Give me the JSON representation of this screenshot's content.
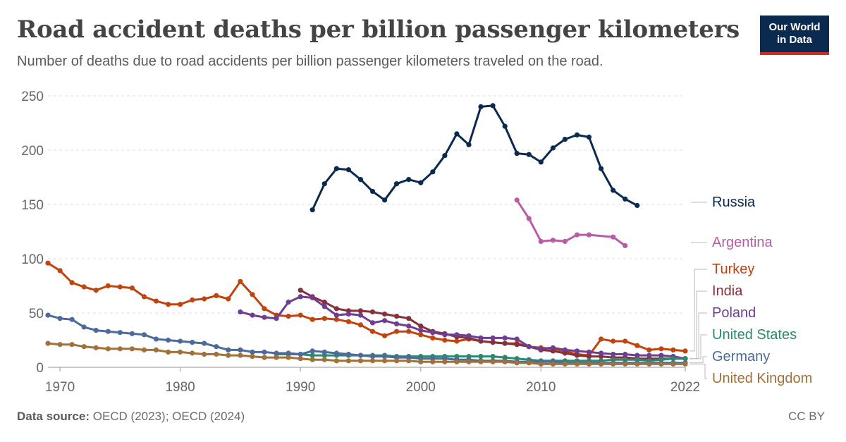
{
  "header": {
    "title": "Road accident deaths per billion passenger kilometers",
    "subtitle": "Number of deaths due to road accidents per billion passenger kilometers traveled on the road.",
    "logo_line1": "Our World",
    "logo_line2": "in Data"
  },
  "footer": {
    "source_label": "Data source:",
    "source_text": "OECD (2023); OECD (2024)",
    "license": "CC BY"
  },
  "chart_data": {
    "type": "line",
    "xlim": [
      1969,
      2022
    ],
    "ylim": [
      0,
      250
    ],
    "yticks": [
      0,
      50,
      100,
      150,
      200,
      250
    ],
    "xticks": [
      1970,
      1980,
      1990,
      2000,
      2010,
      2022
    ],
    "grid": true,
    "legend": "right-end-labels",
    "series": [
      {
        "name": "Russia",
        "color": "#0b2a4f",
        "x": [
          1991,
          1992,
          1993,
          1994,
          1995,
          1996,
          1997,
          1998,
          1999,
          2000,
          2001,
          2002,
          2003,
          2004,
          2005,
          2006,
          2007,
          2008,
          2009,
          2010,
          2011,
          2012,
          2013,
          2014,
          2015,
          2016,
          2017,
          2018
        ],
        "y": [
          145,
          169,
          183,
          182,
          173,
          162,
          154,
          169,
          173,
          170,
          180,
          195,
          215,
          205,
          240,
          241,
          222,
          197,
          196,
          189,
          202,
          210,
          214,
          212,
          183,
          163,
          155,
          149
        ]
      },
      {
        "name": "Argentina",
        "color": "#b85ca8",
        "x": [
          2008,
          2009,
          2010,
          2011,
          2012,
          2013,
          2014,
          2016,
          2017
        ],
        "y": [
          154,
          137,
          116,
          117,
          116,
          122,
          122,
          120,
          112
        ]
      },
      {
        "name": "Turkey",
        "color": "#c0440e",
        "x": [
          1969,
          1970,
          1971,
          1972,
          1973,
          1974,
          1975,
          1976,
          1977,
          1978,
          1979,
          1980,
          1981,
          1982,
          1983,
          1984,
          1985,
          1986,
          1987,
          1988,
          1989,
          1990,
          1991,
          1992,
          1993,
          1994,
          1995,
          1996,
          1997,
          1998,
          1999,
          2000,
          2001,
          2002,
          2003,
          2004,
          2005,
          2006,
          2007,
          2008,
          2009,
          2010,
          2011,
          2012,
          2013,
          2014,
          2015,
          2016,
          2017,
          2018,
          2019,
          2020,
          2021,
          2022
        ],
        "y": [
          96,
          89,
          78,
          74,
          71,
          75,
          74,
          73,
          65,
          61,
          58,
          58,
          62,
          63,
          66,
          63,
          79,
          67,
          54,
          48,
          47,
          48,
          44,
          45,
          44,
          42,
          39,
          33,
          29,
          33,
          33,
          30,
          27,
          25,
          24,
          26,
          24,
          23,
          22,
          22,
          19,
          18,
          17,
          15,
          12,
          11,
          26,
          24,
          24,
          20,
          16,
          17,
          16,
          15
        ]
      },
      {
        "name": "India",
        "color": "#883039",
        "x": [
          1990,
          1991,
          1992,
          1993,
          1994,
          1995,
          1996,
          1997,
          1998,
          1999,
          2000,
          2001,
          2002,
          2003,
          2004,
          2005,
          2006,
          2007,
          2008,
          2009,
          2010,
          2011,
          2012,
          2013,
          2014,
          2015,
          2016,
          2017,
          2018,
          2019,
          2020,
          2021,
          2022
        ],
        "y": [
          71,
          65,
          60,
          54,
          52,
          52,
          51,
          49,
          47,
          45,
          38,
          33,
          31,
          28,
          27,
          24,
          23,
          22,
          21,
          19,
          16,
          15,
          13,
          11,
          10,
          10,
          9,
          9,
          8,
          8,
          8,
          8,
          8
        ]
      },
      {
        "name": "Poland",
        "color": "#6d3e91",
        "x": [
          1985,
          1986,
          1987,
          1988,
          1989,
          1990,
          1991,
          1992,
          1993,
          1994,
          1995,
          1996,
          1997,
          1998,
          1999,
          2000,
          2001,
          2002,
          2003,
          2004,
          2005,
          2006,
          2007,
          2008,
          2009,
          2010,
          2011,
          2012,
          2013,
          2014,
          2015,
          2016,
          2017,
          2018,
          2019,
          2020,
          2021,
          2022
        ],
        "y": [
          51,
          48,
          46,
          45,
          60,
          65,
          64,
          56,
          48,
          49,
          48,
          41,
          43,
          40,
          38,
          34,
          32,
          30,
          30,
          29,
          27,
          27,
          27,
          26,
          19,
          17,
          18,
          16,
          15,
          14,
          13,
          12,
          12,
          11,
          11,
          11,
          10,
          8
        ]
      },
      {
        "name": "United States",
        "color": "#2a8a6a",
        "x": [
          1988,
          1989,
          1990,
          1991,
          1992,
          1993,
          1994,
          1995,
          1996,
          1997,
          1998,
          1999,
          2000,
          2001,
          2002,
          2003,
          2004,
          2005,
          2006,
          2007,
          2008,
          2009,
          2010,
          2011,
          2012,
          2013,
          2014,
          2015,
          2016,
          2017,
          2018,
          2019,
          2020,
          2021,
          2022
        ],
        "y": [
          12,
          12,
          12,
          11,
          11,
          11,
          11,
          11,
          11,
          11,
          10,
          10,
          10,
          10,
          10,
          10,
          10,
          10,
          10,
          9,
          8,
          7,
          6,
          6,
          6,
          6,
          6,
          6,
          7,
          7,
          7,
          6,
          7,
          8,
          8
        ]
      },
      {
        "name": "Germany",
        "color": "#4c6a9c",
        "x": [
          1969,
          1970,
          1971,
          1972,
          1973,
          1974,
          1975,
          1976,
          1977,
          1978,
          1979,
          1980,
          1981,
          1982,
          1983,
          1984,
          1985,
          1986,
          1987,
          1988,
          1989,
          1990,
          1991,
          1992,
          1993,
          1994,
          1995,
          1996,
          1997,
          1998,
          1999,
          2000,
          2001,
          2002,
          2003,
          2004,
          2005,
          2006,
          2007,
          2008,
          2009,
          2010,
          2011,
          2012,
          2013,
          2014,
          2015,
          2016,
          2017,
          2018,
          2019,
          2020,
          2021,
          2022
        ],
        "y": [
          48,
          45,
          44,
          37,
          34,
          33,
          32,
          31,
          30,
          26,
          25,
          24,
          23,
          22,
          19,
          16,
          16,
          14,
          14,
          13,
          13,
          12,
          15,
          14,
          13,
          12,
          11,
          10,
          10,
          9,
          9,
          8,
          8,
          8,
          7,
          7,
          6,
          6,
          6,
          5,
          5,
          5,
          5,
          4,
          4,
          4,
          4,
          4,
          4,
          4,
          4,
          4,
          4,
          4
        ]
      },
      {
        "name": "United Kingdom",
        "color": "#a2713a",
        "x": [
          1969,
          1970,
          1971,
          1972,
          1973,
          1974,
          1975,
          1976,
          1977,
          1978,
          1979,
          1980,
          1981,
          1982,
          1983,
          1984,
          1985,
          1986,
          1987,
          1988,
          1989,
          1990,
          1991,
          1992,
          1993,
          1994,
          1995,
          1996,
          1997,
          1998,
          1999,
          2000,
          2001,
          2002,
          2003,
          2004,
          2005,
          2006,
          2007,
          2008,
          2009,
          2010,
          2011,
          2012,
          2013,
          2014,
          2015,
          2016,
          2017,
          2018,
          2019,
          2020,
          2021,
          2022
        ],
        "y": [
          22,
          21,
          21,
          19,
          18,
          17,
          17,
          17,
          16,
          16,
          14,
          14,
          13,
          12,
          12,
          11,
          11,
          10,
          9,
          9,
          9,
          8,
          7,
          7,
          6,
          6,
          6,
          6,
          6,
          6,
          6,
          5,
          5,
          5,
          5,
          5,
          5,
          5,
          5,
          4,
          4,
          3,
          3,
          3,
          3,
          3,
          3,
          3,
          3,
          3,
          3,
          3,
          3,
          3
        ]
      }
    ]
  }
}
